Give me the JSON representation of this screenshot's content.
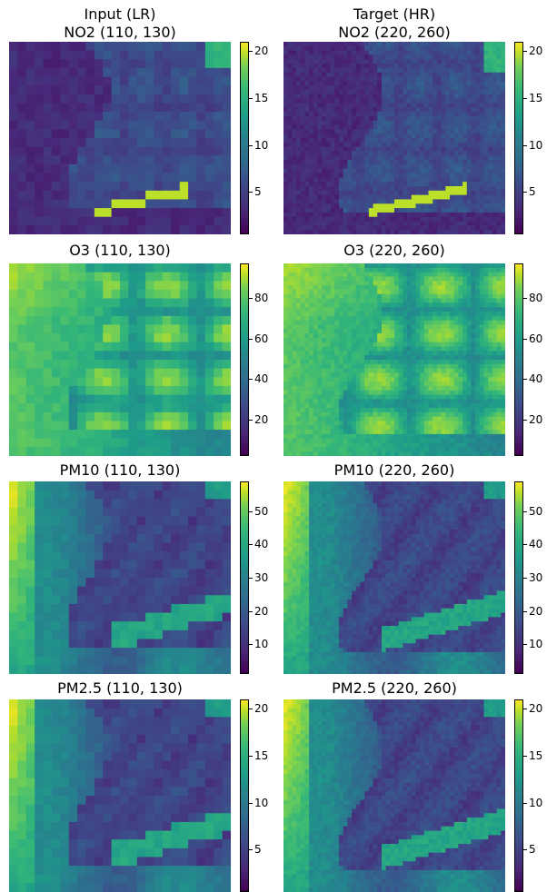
{
  "figure": {
    "columns": [
      {
        "header_line1": "Input (LR)"
      },
      {
        "header_line1": "Target (HR)"
      }
    ]
  },
  "chart_data": [
    {
      "type": "heatmap",
      "title": "NO2  (110, 130)",
      "variable": "NO2",
      "grid_shape": [
        110,
        130
      ],
      "colormap": "viridis",
      "colorbar": {
        "range": [
          0.5,
          21
        ],
        "ticks": [
          5,
          10,
          15,
          20
        ]
      }
    },
    {
      "type": "heatmap",
      "title": "NO2  (220, 260)",
      "variable": "NO2",
      "grid_shape": [
        220,
        260
      ],
      "colormap": "viridis",
      "colorbar": {
        "range": [
          0.5,
          21
        ],
        "ticks": [
          5,
          10,
          15,
          20
        ]
      }
    },
    {
      "type": "heatmap",
      "title": "O3  (110, 130)",
      "variable": "O3",
      "grid_shape": [
        110,
        130
      ],
      "colormap": "viridis",
      "colorbar": {
        "range": [
          2,
          97
        ],
        "ticks": [
          20,
          40,
          60,
          80
        ]
      }
    },
    {
      "type": "heatmap",
      "title": "O3  (220, 260)",
      "variable": "O3",
      "grid_shape": [
        220,
        260
      ],
      "colormap": "viridis",
      "colorbar": {
        "range": [
          2,
          97
        ],
        "ticks": [
          20,
          40,
          60,
          80
        ]
      }
    },
    {
      "type": "heatmap",
      "title": "PM10  (110, 130)",
      "variable": "PM10",
      "grid_shape": [
        110,
        130
      ],
      "colormap": "viridis",
      "colorbar": {
        "range": [
          1,
          59
        ],
        "ticks": [
          10,
          20,
          30,
          40,
          50
        ]
      }
    },
    {
      "type": "heatmap",
      "title": "PM10  (220, 260)",
      "variable": "PM10",
      "grid_shape": [
        220,
        260
      ],
      "colormap": "viridis",
      "colorbar": {
        "range": [
          1,
          59
        ],
        "ticks": [
          10,
          20,
          30,
          40,
          50
        ]
      }
    },
    {
      "type": "heatmap",
      "title": "PM2.5  (110, 130)",
      "variable": "PM2.5",
      "grid_shape": [
        110,
        130
      ],
      "colormap": "viridis",
      "colorbar": {
        "range": [
          0.5,
          21
        ],
        "ticks": [
          5,
          10,
          15,
          20
        ]
      }
    },
    {
      "type": "heatmap",
      "title": "PM2.5  (220, 260)",
      "variable": "PM2.5",
      "grid_shape": [
        220,
        260
      ],
      "colormap": "viridis",
      "colorbar": {
        "range": [
          0.5,
          21
        ],
        "ticks": [
          5,
          10,
          15,
          20
        ]
      }
    }
  ]
}
